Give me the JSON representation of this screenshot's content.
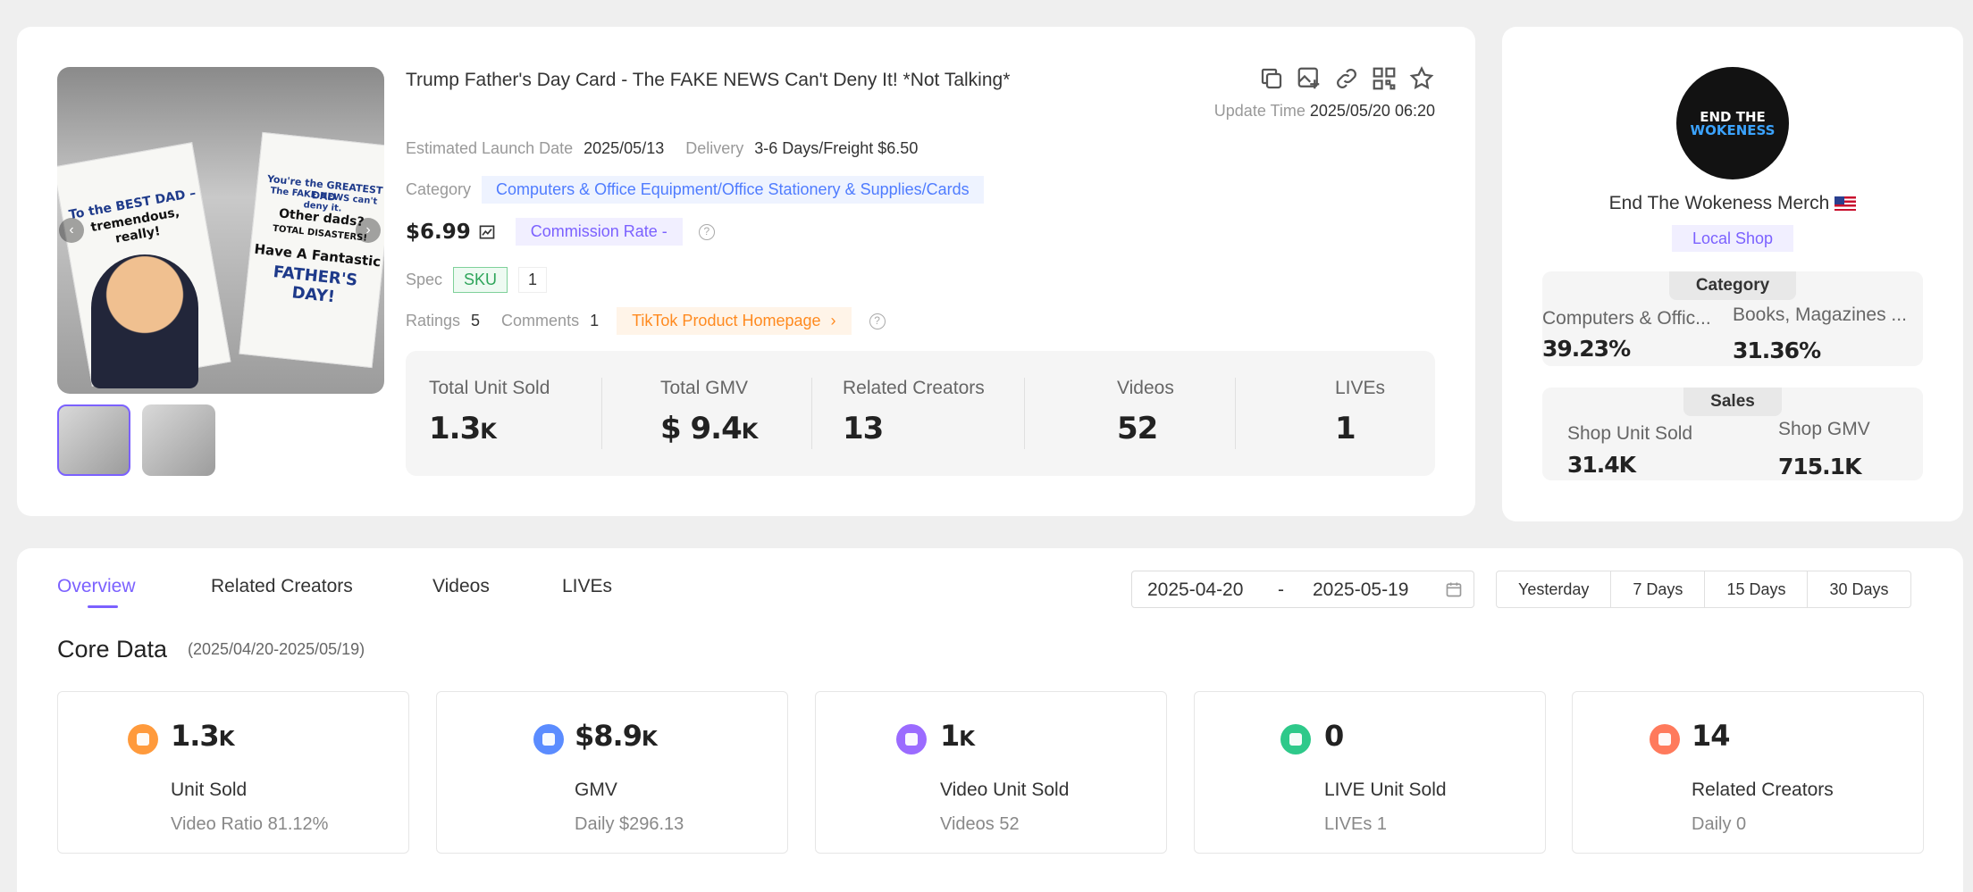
{
  "product": {
    "title": "Trump Father's Day Card - The FAKE NEWS Can't Deny It! *Not Talking*",
    "update_label": "Update Time",
    "update_time": "2025/05/20 06:20",
    "launch_label": "Estimated Launch Date",
    "launch_date": "2025/05/13",
    "delivery_label": "Delivery",
    "delivery": "3-6 Days/Freight $6.50",
    "category_label": "Category",
    "category": "Computers & Office Equipment/Office Stationery & Supplies/Cards",
    "price": "$6.99",
    "commission": "Commission Rate -",
    "spec_label": "Spec",
    "sku_tag": "SKU",
    "sku_count": "1",
    "ratings_label": "Ratings",
    "ratings": "5",
    "comments_label": "Comments",
    "comments": "1",
    "tiktok_link": "TikTok Product Homepage",
    "image_text": {
      "left_line1": "To the BEST DAD –",
      "left_line2": "tremendous, really!",
      "right_line1": "You're the GREATEST DAD",
      "right_line2": "The FAKE NEWS can't deny it.",
      "right_line3": "Other dads?",
      "right_line4": "TOTAL DISASTERS!",
      "right_line5": "Have A Fantastic",
      "right_line6": "FATHER'S DAY!"
    }
  },
  "stats": [
    {
      "label": "Total Unit Sold",
      "value": "1.3",
      "unit": "K"
    },
    {
      "label": "Total GMV",
      "value": "$ 9.4",
      "unit": "K"
    },
    {
      "label": "Related Creators",
      "value": "13",
      "unit": ""
    },
    {
      "label": "Videos",
      "value": "52",
      "unit": ""
    },
    {
      "label": "LIVEs",
      "value": "1",
      "unit": ""
    }
  ],
  "shop": {
    "logo_line1": "END THE",
    "logo_line2": "WOKENESS",
    "name": "End The Wokeness Merch",
    "type": "Local Shop",
    "category_title": "Category",
    "cat1_name": "Computers & Offic...",
    "cat1_pct": "39.23%",
    "cat2_name": "Books, Magazines ...",
    "cat2_pct": "31.36%",
    "sales_title": "Sales",
    "unit_sold_label": "Shop Unit Sold",
    "unit_sold": "31.4K",
    "gmv_label": "Shop GMV",
    "gmv": "715.1K"
  },
  "tabs": [
    "Overview",
    "Related Creators",
    "Videos",
    "LIVEs"
  ],
  "date_range": {
    "start": "2025-04-20",
    "sep": "-",
    "end": "2025-05-19"
  },
  "quick_ranges": [
    "Yesterday",
    "7 Days",
    "15 Days",
    "30 Days"
  ],
  "core": {
    "title": "Core Data",
    "range": "(2025/04/20-2025/05/19)",
    "metrics": [
      {
        "value": "1.3",
        "unit": "K",
        "label": "Unit Sold",
        "sub": "Video Ratio 81.12%",
        "color": "#ff9a3c"
      },
      {
        "value": "$8.9",
        "unit": "K",
        "label": "GMV",
        "sub": "Daily $296.13",
        "color": "#5b8cff"
      },
      {
        "value": "1",
        "unit": "K",
        "label": "Video Unit Sold",
        "sub": "Videos 52",
        "color": "#9b6bff"
      },
      {
        "value": "0",
        "unit": "",
        "label": "LIVE Unit Sold",
        "sub": "LIVEs 1",
        "color": "#2ec98a"
      },
      {
        "value": "14",
        "unit": "",
        "label": "Related Creators",
        "sub": "Daily 0",
        "color": "#ff7a5c"
      }
    ]
  },
  "colors": {
    "accent": "#7b61ff",
    "link": "#4f7cff",
    "tiktok": "#ff8a1f",
    "sku": "#2fa55b"
  }
}
